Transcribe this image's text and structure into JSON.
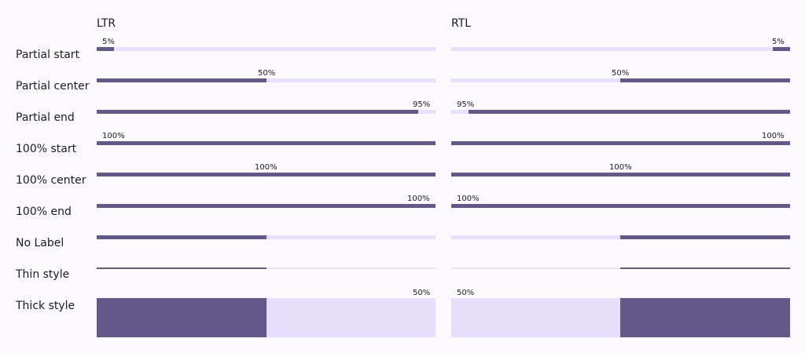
{
  "columns": {
    "ltr": "LTR",
    "rtl": "RTL"
  },
  "rows": [
    {
      "label": "Partial start",
      "value": 0.05,
      "label_text": "5%",
      "label_pos": "start",
      "style": "normal"
    },
    {
      "label": "Partial center",
      "value": 0.5,
      "label_text": "50%",
      "label_pos": "center",
      "style": "normal"
    },
    {
      "label": "Partial end",
      "value": 0.95,
      "label_text": "95%",
      "label_pos": "end",
      "style": "normal"
    },
    {
      "label": "100% start",
      "value": 1.0,
      "label_text": "100%",
      "label_pos": "start",
      "style": "normal"
    },
    {
      "label": "100% center",
      "value": 1.0,
      "label_text": "100%",
      "label_pos": "center",
      "style": "normal"
    },
    {
      "label": "100% end",
      "value": 1.0,
      "label_text": "100%",
      "label_pos": "end",
      "style": "normal"
    },
    {
      "label": "No Label",
      "value": 0.5,
      "label_text": "",
      "label_pos": "none",
      "style": "normal"
    },
    {
      "label": "Thin style",
      "value": 0.5,
      "label_text": "",
      "label_pos": "none",
      "style": "thin"
    },
    {
      "label": "Thick style",
      "value": 0.5,
      "label_text": "50%",
      "label_pos": "end",
      "style": "thick"
    }
  ],
  "colors": {
    "fill": "#645889",
    "track": "#e7defe",
    "background": "#fdf8ff"
  }
}
